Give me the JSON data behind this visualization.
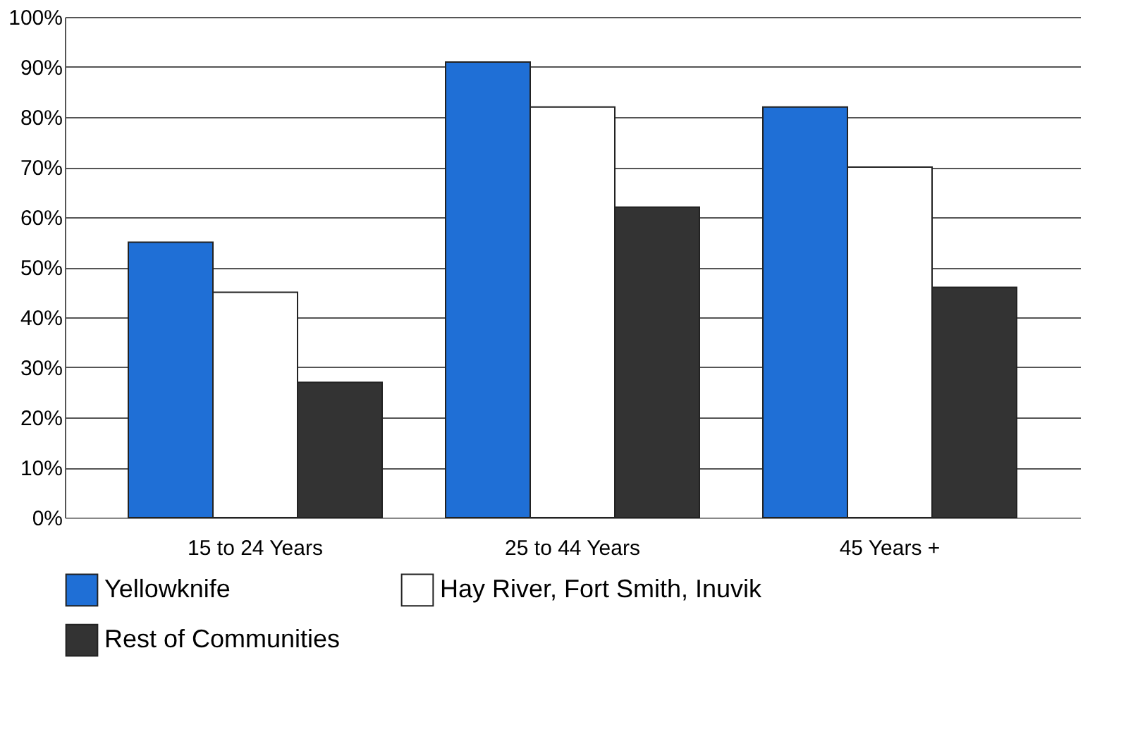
{
  "chart_data": {
    "type": "bar",
    "categories": [
      "15 to 24 Years",
      "25 to 44 Years",
      "45 Years +"
    ],
    "series": [
      {
        "name": "Yellowknife",
        "color": "#1f6fd6",
        "values": [
          55,
          91,
          82
        ]
      },
      {
        "name": "Hay River, Fort Smith, Inuvik",
        "color": "#ffffff",
        "values": [
          45,
          82,
          70
        ]
      },
      {
        "name": "Rest of Communities",
        "color": "#333333",
        "values": [
          27,
          62,
          46
        ]
      }
    ],
    "ylim": [
      0,
      100
    ],
    "yticks": [
      {
        "value": 0,
        "label": "0%"
      },
      {
        "value": 10,
        "label": "10%"
      },
      {
        "value": 20,
        "label": "20%"
      },
      {
        "value": 30,
        "label": "30%"
      },
      {
        "value": 40,
        "label": "40%"
      },
      {
        "value": 50,
        "label": "50%"
      },
      {
        "value": 60,
        "label": "60%"
      },
      {
        "value": 70,
        "label": "70%"
      },
      {
        "value": 80,
        "label": "80%"
      },
      {
        "value": 90,
        "label": "90%"
      },
      {
        "value": 100,
        "label": "100%"
      }
    ],
    "grid": "y",
    "legend": "bottom"
  }
}
